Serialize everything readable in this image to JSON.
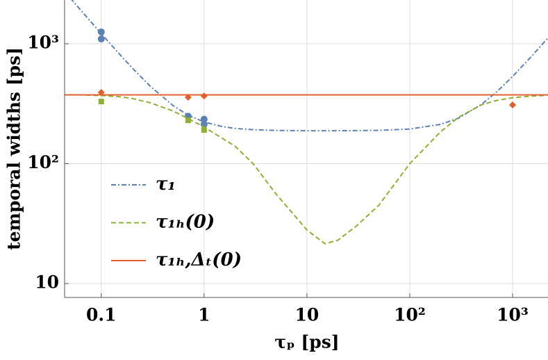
{
  "chart_data": {
    "type": "line",
    "xlabel": "τₚ [ps]",
    "ylabel": "temporal widths [ps]",
    "xscale": "log",
    "yscale": "log",
    "grid": true,
    "legend": "lower left",
    "xlim": [
      0.044,
      2210
    ],
    "ylim": [
      7.66,
      2320
    ],
    "xticks": [
      {
        "value": 0.1,
        "label": "0.1"
      },
      1,
      10,
      {
        "value": 100,
        "label": "10²"
      },
      {
        "value": 1000,
        "label": "10³"
      }
    ],
    "yticks": [
      10,
      {
        "value": 100,
        "label": "10²"
      },
      {
        "value": 1000,
        "label": "10³"
      }
    ],
    "series": [
      {
        "name": "τ₁",
        "color": "#5e81b5",
        "style": "dashdot",
        "x": [
          0.05,
          0.07,
          0.1,
          0.15,
          0.2,
          0.3,
          0.5,
          0.7,
          1,
          1.5,
          2,
          3,
          5,
          10,
          20,
          50,
          100,
          200,
          300,
          500,
          700,
          1000,
          1500,
          2200
        ],
        "values": [
          2407,
          1725,
          1215,
          822,
          629,
          442,
          305,
          254,
          223,
          204,
          197,
          192,
          189.5,
          188.4,
          188.4,
          189.7,
          194.5,
          213,
          240.5,
          313,
          397,
          534,
          773,
          1116
        ],
        "markers": {
          "shape": "circle",
          "x": [
            0.1,
            0.1,
            0.7,
            1,
            1
          ],
          "values": [
            1256,
            1098,
            249,
            235,
            213
          ]
        }
      },
      {
        "name": "τ₁ₕ(0)",
        "color": "#8fb032",
        "style": "dashed",
        "x": [
          0.05,
          0.07,
          0.1,
          0.15,
          0.2,
          0.3,
          0.5,
          0.7,
          1,
          1.5,
          2,
          3,
          5,
          10,
          15,
          20,
          30,
          50,
          100,
          200,
          300,
          500,
          700,
          1000,
          1500,
          2200
        ],
        "values": [
          376,
          374,
          370,
          362,
          350,
          322,
          275,
          238,
          202,
          163,
          140,
          100,
          56,
          28,
          21.5,
          23,
          30,
          45,
          100,
          185,
          245,
          310,
          337,
          355,
          366,
          372
        ],
        "markers": {
          "shape": "square",
          "x": [
            0.1,
            0.7,
            1
          ],
          "values": [
            330,
            230,
            191
          ]
        }
      },
      {
        "name": "τ₁ₕ,Δₜ(0)",
        "color": "#e1602c",
        "style": "solid",
        "x": [
          0.044,
          2210
        ],
        "values": [
          375,
          375
        ],
        "markers": {
          "shape": "diamond",
          "x": [
            0.1,
            0.7,
            1,
            1000
          ],
          "values": [
            393,
            358,
            367,
            309
          ]
        }
      }
    ]
  }
}
